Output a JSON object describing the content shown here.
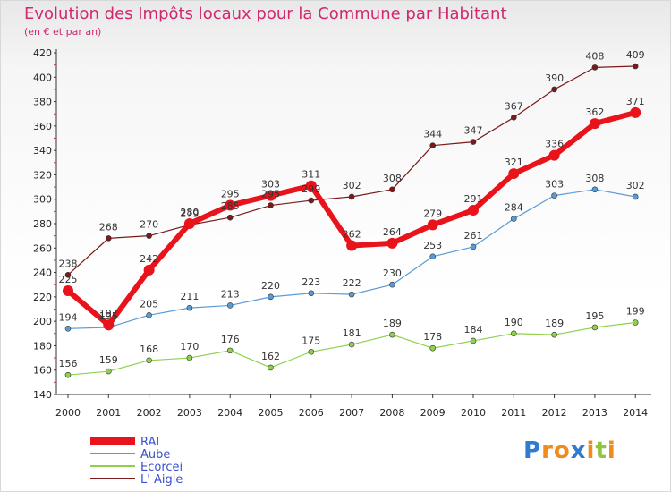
{
  "header": {
    "title": "Evolution des Impôts locaux pour la Commune par Habitant",
    "subtitle": "(en € et par an)"
  },
  "logo": {
    "letters": [
      "P",
      "r",
      "o",
      "x",
      "i",
      "t",
      "i"
    ],
    "colors": [
      "#2f7bd1",
      "#f08c1e",
      "#f08c1e",
      "#2f7bd1",
      "#f08c1e",
      "#8cc63f",
      "#f08c1e"
    ]
  },
  "chart_data": {
    "type": "line",
    "title": "Evolution des Impôts locaux pour la Commune par Habitant",
    "subtitle": "(en € et par an)",
    "xlabel": "",
    "ylabel": "",
    "x": [
      "2000",
      "2001",
      "2002",
      "2003",
      "2004",
      "2005",
      "2006",
      "2007",
      "2008",
      "2009",
      "2010",
      "2011",
      "2012",
      "2013",
      "2014"
    ],
    "yticks": [
      "140",
      "160",
      "180",
      "200",
      "220",
      "240",
      "260",
      "280",
      "300",
      "320",
      "340",
      "360",
      "380",
      "400",
      "420"
    ],
    "ylim": [
      140,
      420
    ],
    "grid": false,
    "legend_position": "bottom-left",
    "series": [
      {
        "name": "L' Aigle",
        "color": "#7a1a1a",
        "values": [
          238,
          268,
          270,
          279,
          285,
          295,
          299,
          302,
          308,
          344,
          347,
          367,
          390,
          408,
          409
        ],
        "labels": [
          "238",
          "268",
          "270",
          "279",
          "285",
          "295",
          "299",
          "302",
          "308",
          "344",
          "347",
          "367",
          "390",
          "408",
          "409"
        ]
      },
      {
        "name": "Aube",
        "color": "#5b9bd5",
        "values": [
          194,
          195,
          205,
          211,
          213,
          220,
          223,
          222,
          230,
          253,
          261,
          284,
          303,
          308,
          302
        ],
        "labels": [
          "194",
          "195",
          "205",
          "211",
          "213",
          "220",
          "223",
          "222",
          "230",
          "253",
          "261",
          "284",
          "303",
          "308",
          "302"
        ]
      },
      {
        "name": "Ecorcei",
        "color": "#8fd14f",
        "values": [
          156,
          159,
          168,
          170,
          176,
          162,
          175,
          181,
          189,
          178,
          184,
          190,
          189,
          195,
          199
        ],
        "labels": [
          "156",
          "159",
          "168",
          "170",
          "176",
          "162",
          "175",
          "181",
          "189",
          "178",
          "184",
          "190",
          "189",
          "195",
          "199"
        ]
      },
      {
        "name": "RAI",
        "color": "#e8131b",
        "values": [
          225,
          197,
          242,
          280,
          295,
          303,
          311,
          262,
          264,
          279,
          291,
          321,
          336,
          362,
          371
        ],
        "labels": [
          "225",
          "197",
          "242",
          "280",
          "295",
          "303",
          "311",
          "262",
          "264",
          "279",
          "291",
          "321",
          "336",
          "362",
          "371"
        ]
      }
    ],
    "legend": [
      "RAI",
      "Aube",
      "Ecorcei",
      "L' Aigle"
    ]
  }
}
